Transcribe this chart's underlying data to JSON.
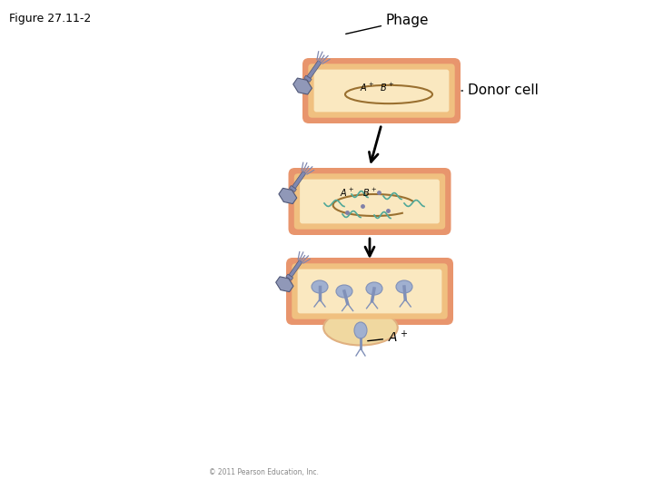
{
  "title": "Figure 27.11-2",
  "bg_color": "#ffffff",
  "cell_outer_color": "#e8956d",
  "cell_inner_color": "#f0c080",
  "cell_fill_color": "#fae8c0",
  "chromosome_color": "#c89050",
  "phage_head_color": "#9098b8",
  "phage_tail_color": "#8088b0",
  "dna_color": "#50a898",
  "new_phage_body_color": "#8090b8",
  "new_phage_head_color": "#a0b0d0",
  "burst_color": "#f0d8a0",
  "burst_edge_color": "#e0b080",
  "arrow_color": "#000000",
  "text_color": "#000000",
  "label_phage": "Phage",
  "label_donor": "Donor cell",
  "label_a_plus": "$A^+$",
  "label_figure": "Figure 27.11-2",
  "copyright": "© 2011 Pearson Education, Inc."
}
